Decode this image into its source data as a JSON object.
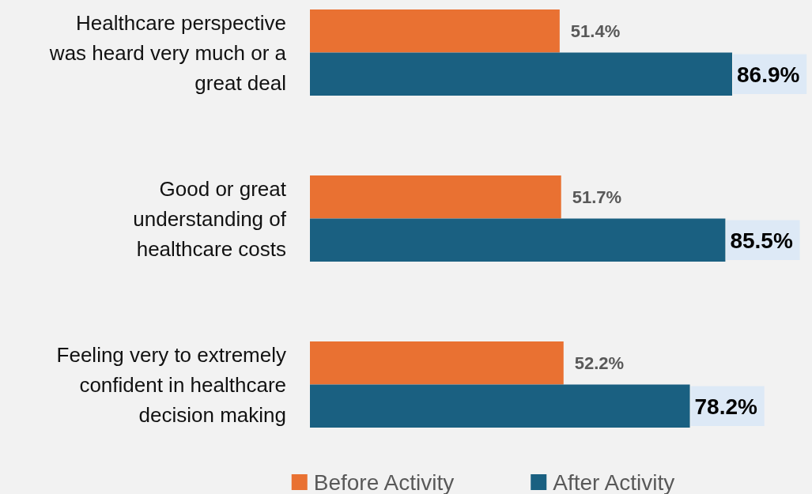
{
  "chart_data": {
    "type": "bar",
    "orientation": "horizontal",
    "categories": [
      "Healthcare perspective was heard very much or a great deal",
      "Good or great understanding of healthcare costs",
      "Feeling very to extremely confident in healthcare decision making"
    ],
    "series": [
      {
        "name": "Before Activity",
        "color": "#e97132",
        "values": [
          51.4,
          51.7,
          52.2
        ],
        "value_labels": [
          "51.4%",
          "51.7%",
          "52.2%"
        ]
      },
      {
        "name": "After Activity",
        "color": "#1a6081",
        "values": [
          86.9,
          85.5,
          78.2
        ],
        "value_labels": [
          "86.9%",
          "85.5%",
          "78.2%"
        ]
      }
    ],
    "legend": "bottom"
  }
}
